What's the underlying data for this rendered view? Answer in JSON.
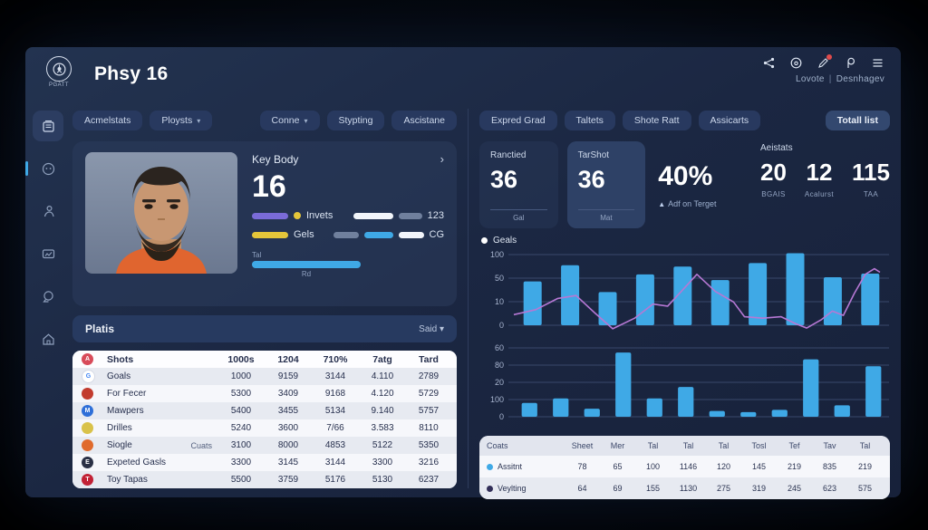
{
  "window": {
    "title": "Phsy 16",
    "logo_caption": "PGATT",
    "account_user": "Lovote",
    "account_org": "Desnhagev"
  },
  "topbar_icons": [
    "share-icon",
    "home-circle-icon",
    "edit-notification-icon",
    "rho-icon",
    "menu-icon"
  ],
  "sidebar_icons": [
    "archive-icon",
    "face-icon",
    "person-icon",
    "card-icon",
    "chat-icon",
    "home-icon"
  ],
  "left_tabs": [
    {
      "label": "Acmelstats",
      "caret": false,
      "push": false
    },
    {
      "label": "Ploysts",
      "caret": true,
      "push": false
    },
    {
      "label": "Conne",
      "caret": true,
      "push": true
    },
    {
      "label": "Stypting",
      "caret": false,
      "push": false
    },
    {
      "label": "Ascistane",
      "caret": false,
      "push": false
    }
  ],
  "right_tabs": [
    {
      "label": "Expred Grad",
      "caret": false,
      "push": false
    },
    {
      "label": "Taltets",
      "caret": false,
      "push": false
    },
    {
      "label": "Shote Ratt",
      "caret": false,
      "push": false
    },
    {
      "label": "Assicarts",
      "caret": false,
      "push": false
    },
    {
      "label": "Totall list",
      "caret": false,
      "push": true,
      "bright": true
    }
  ],
  "player_card": {
    "section_title": "Key Body",
    "big_number": "16",
    "row1_label": "Invets",
    "row1_value": "123",
    "row2_label": "Gels",
    "row2_value": "CG",
    "progress_top": "Tal",
    "progress_bottom": "Rd",
    "accent_purple": "#7a6bd8",
    "accent_yellow": "#e5c63a",
    "accent_blue": "#3fa9e6"
  },
  "platis": {
    "title": "Platis",
    "dropdown": "Said"
  },
  "stats_table": {
    "header": {
      "label": "Shots",
      "icon_color": "#d84b5a",
      "icon_letter": "A",
      "columns": [
        "1000s",
        "1204",
        "710%",
        "7atg",
        "Tard"
      ]
    },
    "rows": [
      {
        "label": "Goals",
        "icon_color": "#ffffff",
        "icon_letter": "G",
        "letter_color": "#4285f4",
        "note": "",
        "values": [
          "1000",
          "9159",
          "3144",
          "4.110",
          "2789"
        ]
      },
      {
        "label": "For Fecer",
        "icon_color": "#c23b2e",
        "icon_letter": "",
        "note": "",
        "values": [
          "5300",
          "3409",
          "9168",
          "4.120",
          "5729"
        ]
      },
      {
        "label": "Mawpers",
        "icon_color": "#2e6fd8",
        "icon_letter": "M",
        "note": "",
        "values": [
          "5400",
          "3455",
          "5134",
          "9.140",
          "5757"
        ]
      },
      {
        "label": "Drilles",
        "icon_color": "#d9c24a",
        "icon_letter": "",
        "note": "",
        "values": [
          "5240",
          "3600",
          "7/66",
          "3.583",
          "8110"
        ]
      },
      {
        "label": "Siogle",
        "icon_color": "#e06a2c",
        "icon_letter": "",
        "note": "Cuats",
        "values": [
          "3100",
          "8000",
          "4853",
          "5122",
          "5350"
        ]
      },
      {
        "label": "Expeted Gasls",
        "icon_color": "#2a3045",
        "icon_letter": "E",
        "note": "",
        "values": [
          "3300",
          "3145",
          "3144",
          "3300",
          "3216"
        ]
      },
      {
        "label": "Toy Tapas",
        "icon_color": "#c22135",
        "icon_letter": "T",
        "note": "",
        "values": [
          "5500",
          "3759",
          "5176",
          "5130",
          "6237"
        ]
      }
    ]
  },
  "stat_cards": [
    {
      "label": "Ranctied",
      "value": "36",
      "sub": "Gal",
      "highlight": false
    },
    {
      "label": "TarShot",
      "value": "36",
      "sub": "Mat",
      "highlight": true
    }
  ],
  "pct_card": {
    "value": "40%",
    "sub": "Adf on Terget",
    "up_glyph": "▲"
  },
  "assist_group": {
    "title": "Aeistats",
    "items": [
      {
        "value": "20",
        "label": "BGAIS"
      },
      {
        "value": "12",
        "label": "Acalurst"
      },
      {
        "value": "115",
        "label": "TAA"
      }
    ]
  },
  "chart_data": [
    {
      "type": "bar",
      "title": "Geals",
      "legend": [
        "Geals"
      ],
      "legend_position": "top-left",
      "grid": true,
      "y_ticks": [
        "100",
        "50",
        "10",
        "0"
      ],
      "ylim": [
        0,
        100
      ],
      "values": [
        62,
        85,
        47,
        72,
        83,
        64,
        88,
        102,
        68,
        73
      ],
      "bar_color": "#3fa9e6",
      "line_series": {
        "name": "trend",
        "color": "#b678d4",
        "points": [
          [
            0.0,
            15
          ],
          [
            0.06,
            22
          ],
          [
            0.12,
            38
          ],
          [
            0.17,
            42
          ],
          [
            0.22,
            18
          ],
          [
            0.27,
            -5
          ],
          [
            0.33,
            10
          ],
          [
            0.38,
            30
          ],
          [
            0.42,
            27
          ],
          [
            0.47,
            55
          ],
          [
            0.5,
            72
          ],
          [
            0.55,
            48
          ],
          [
            0.6,
            33
          ],
          [
            0.63,
            12
          ],
          [
            0.68,
            10
          ],
          [
            0.73,
            12
          ],
          [
            0.77,
            2
          ],
          [
            0.8,
            -4
          ],
          [
            0.84,
            8
          ],
          [
            0.87,
            20
          ],
          [
            0.9,
            14
          ],
          [
            0.93,
            45
          ],
          [
            0.96,
            72
          ],
          [
            0.985,
            80
          ],
          [
            1.0,
            75
          ]
        ]
      }
    },
    {
      "type": "bar",
      "title": "",
      "grid": true,
      "y_ticks": [
        "60",
        "80",
        "20",
        "100",
        "0"
      ],
      "ylim": [
        0,
        30
      ],
      "values": [
        6,
        8,
        3.5,
        28,
        8,
        13,
        2.5,
        2,
        3,
        25,
        5,
        22
      ],
      "bar_color": "#3fa9e6"
    }
  ],
  "bottom_table": {
    "columns": [
      "Coats",
      "Sheet",
      "Mer",
      "Tal",
      "Tal",
      "Tal",
      "Tosl",
      "Tef",
      "Tav",
      "Tal"
    ],
    "rows": [
      {
        "label": "Assitnt",
        "dot": "#3fa9e6",
        "values": [
          "78",
          "65",
          "100",
          "1146",
          "120",
          "145",
          "219",
          "835",
          "219"
        ]
      },
      {
        "label": "Veylting",
        "dot": "#322e58",
        "values": [
          "64",
          "69",
          "155",
          "1130",
          "275",
          "319",
          "245",
          "623",
          "575"
        ]
      }
    ]
  }
}
